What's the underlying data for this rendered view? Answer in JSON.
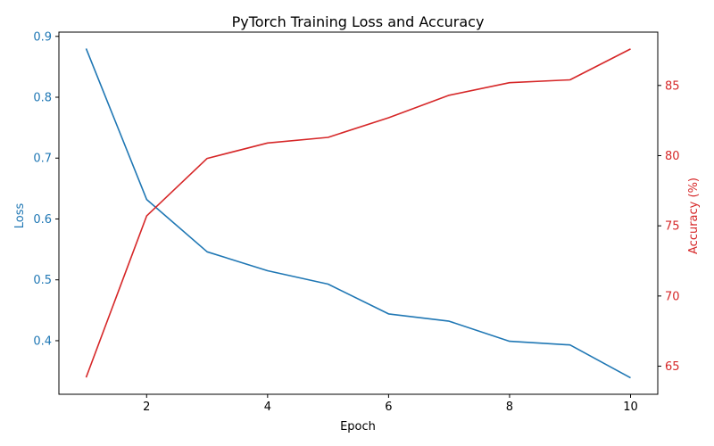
{
  "chart_data": {
    "type": "line",
    "title": "PyTorch Training Loss and Accuracy",
    "xlabel": "Epoch",
    "x": [
      1,
      2,
      3,
      4,
      5,
      6,
      7,
      8,
      9,
      10
    ],
    "xlim": [
      0.55,
      10.45
    ],
    "xticks": [
      2,
      4,
      6,
      8,
      10
    ],
    "grid": false,
    "series": [
      {
        "axis": "left",
        "ylabel": "Loss",
        "color": "#1f77b4",
        "values": [
          0.88,
          0.632,
          0.546,
          0.515,
          0.493,
          0.444,
          0.432,
          0.399,
          0.393,
          0.339
        ],
        "ylim": [
          0.312,
          0.907
        ],
        "yticks": [
          "0.4",
          "0.5",
          "0.6",
          "0.7",
          "0.8",
          "0.9"
        ]
      },
      {
        "axis": "right",
        "ylabel": "Accuracy (%)",
        "color": "#d62728",
        "values": [
          64.2,
          75.7,
          79.8,
          80.9,
          81.3,
          82.7,
          84.3,
          85.2,
          85.4,
          87.6
        ],
        "ylim": [
          63.0,
          88.8
        ],
        "yticks": [
          "65",
          "70",
          "75",
          "80",
          "85"
        ]
      }
    ]
  }
}
